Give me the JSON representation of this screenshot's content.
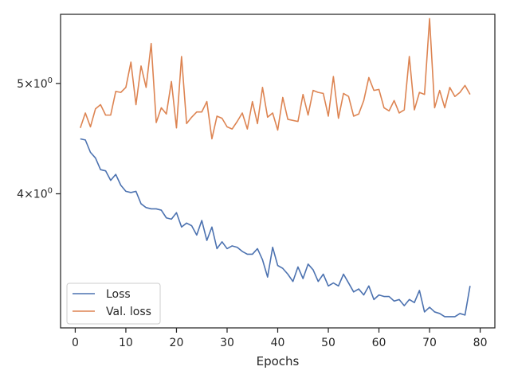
{
  "chart_data": {
    "type": "line",
    "xlabel": "Epochs",
    "ylabel": "",
    "xlim": [
      -2.9,
      82.9
    ],
    "ylim": [
      3.05,
      5.75
    ],
    "yscale": "log",
    "grid": false,
    "legend_position": "lower-left",
    "x_ticks": [
      0,
      10,
      20,
      30,
      40,
      50,
      60,
      70,
      80
    ],
    "y_ticks": [
      {
        "value": 4,
        "mantissa": "4",
        "base": "10",
        "exp": "0"
      },
      {
        "value": 5,
        "mantissa": "5",
        "base": "10",
        "exp": "0"
      }
    ],
    "series": [
      {
        "name": "Loss",
        "color": "#4c72b0",
        "x_start": 1,
        "values": [
          4.47,
          4.46,
          4.35,
          4.3,
          4.2,
          4.19,
          4.11,
          4.16,
          4.07,
          4.02,
          4.01,
          4.02,
          3.92,
          3.89,
          3.88,
          3.88,
          3.87,
          3.81,
          3.8,
          3.85,
          3.74,
          3.77,
          3.75,
          3.68,
          3.79,
          3.64,
          3.74,
          3.58,
          3.63,
          3.58,
          3.6,
          3.59,
          3.56,
          3.54,
          3.54,
          3.58,
          3.5,
          3.38,
          3.59,
          3.46,
          3.44,
          3.4,
          3.35,
          3.45,
          3.37,
          3.47,
          3.43,
          3.35,
          3.4,
          3.32,
          3.34,
          3.32,
          3.4,
          3.34,
          3.28,
          3.3,
          3.26,
          3.32,
          3.23,
          3.26,
          3.25,
          3.25,
          3.22,
          3.23,
          3.19,
          3.23,
          3.21,
          3.29,
          3.15,
          3.18,
          3.15,
          3.14,
          3.12,
          3.12,
          3.12,
          3.14,
          3.13,
          3.32
        ]
      },
      {
        "name": "Val. loss",
        "color": "#dd8452",
        "x_start": 1,
        "values": [
          4.57,
          4.71,
          4.58,
          4.75,
          4.79,
          4.69,
          4.69,
          4.92,
          4.91,
          4.96,
          5.22,
          4.79,
          5.18,
          4.96,
          5.42,
          4.62,
          4.76,
          4.7,
          5.02,
          4.57,
          5.28,
          4.61,
          4.67,
          4.72,
          4.72,
          4.82,
          4.47,
          4.68,
          4.66,
          4.58,
          4.56,
          4.63,
          4.71,
          4.56,
          4.82,
          4.61,
          4.96,
          4.67,
          4.71,
          4.55,
          4.86,
          4.65,
          4.64,
          4.63,
          4.89,
          4.69,
          4.93,
          4.91,
          4.9,
          4.68,
          5.07,
          4.66,
          4.9,
          4.87,
          4.68,
          4.7,
          4.83,
          5.06,
          4.93,
          4.94,
          4.76,
          4.73,
          4.83,
          4.71,
          4.74,
          5.28,
          4.74,
          4.91,
          4.89,
          5.7,
          4.76,
          4.93,
          4.76,
          4.96,
          4.87,
          4.91,
          4.98,
          4.89
        ]
      }
    ]
  }
}
